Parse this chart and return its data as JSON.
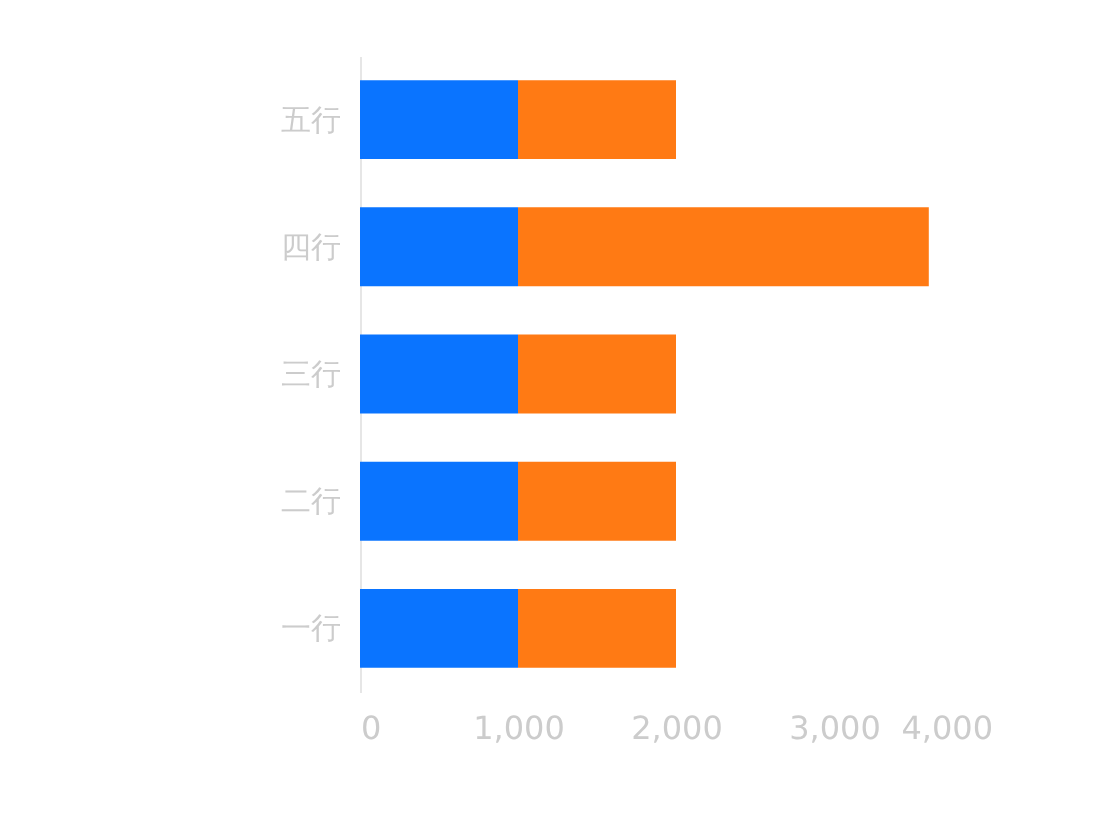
{
  "chart_data": {
    "type": "bar",
    "orientation": "horizontal",
    "stacked": true,
    "categories": [
      "五行",
      "四行",
      "三行",
      "二行",
      "一行"
    ],
    "series": [
      {
        "color": "#0a74ff",
        "values": [
          1000,
          1000,
          1000,
          1000,
          1000
        ]
      },
      {
        "color": "#ff7a14",
        "values": [
          1000,
          2600,
          1000,
          1000,
          1000
        ]
      }
    ],
    "xlim": [
      0,
      4000
    ],
    "xticks": [
      0,
      {
        "value": 1000,
        "label": "1,000"
      },
      {
        "value": 2000,
        "label": "2,000"
      },
      {
        "value": 3000,
        "label": "3,000"
      },
      {
        "value": 4000,
        "label": "4,000"
      }
    ],
    "grid": false,
    "legend": false
  }
}
